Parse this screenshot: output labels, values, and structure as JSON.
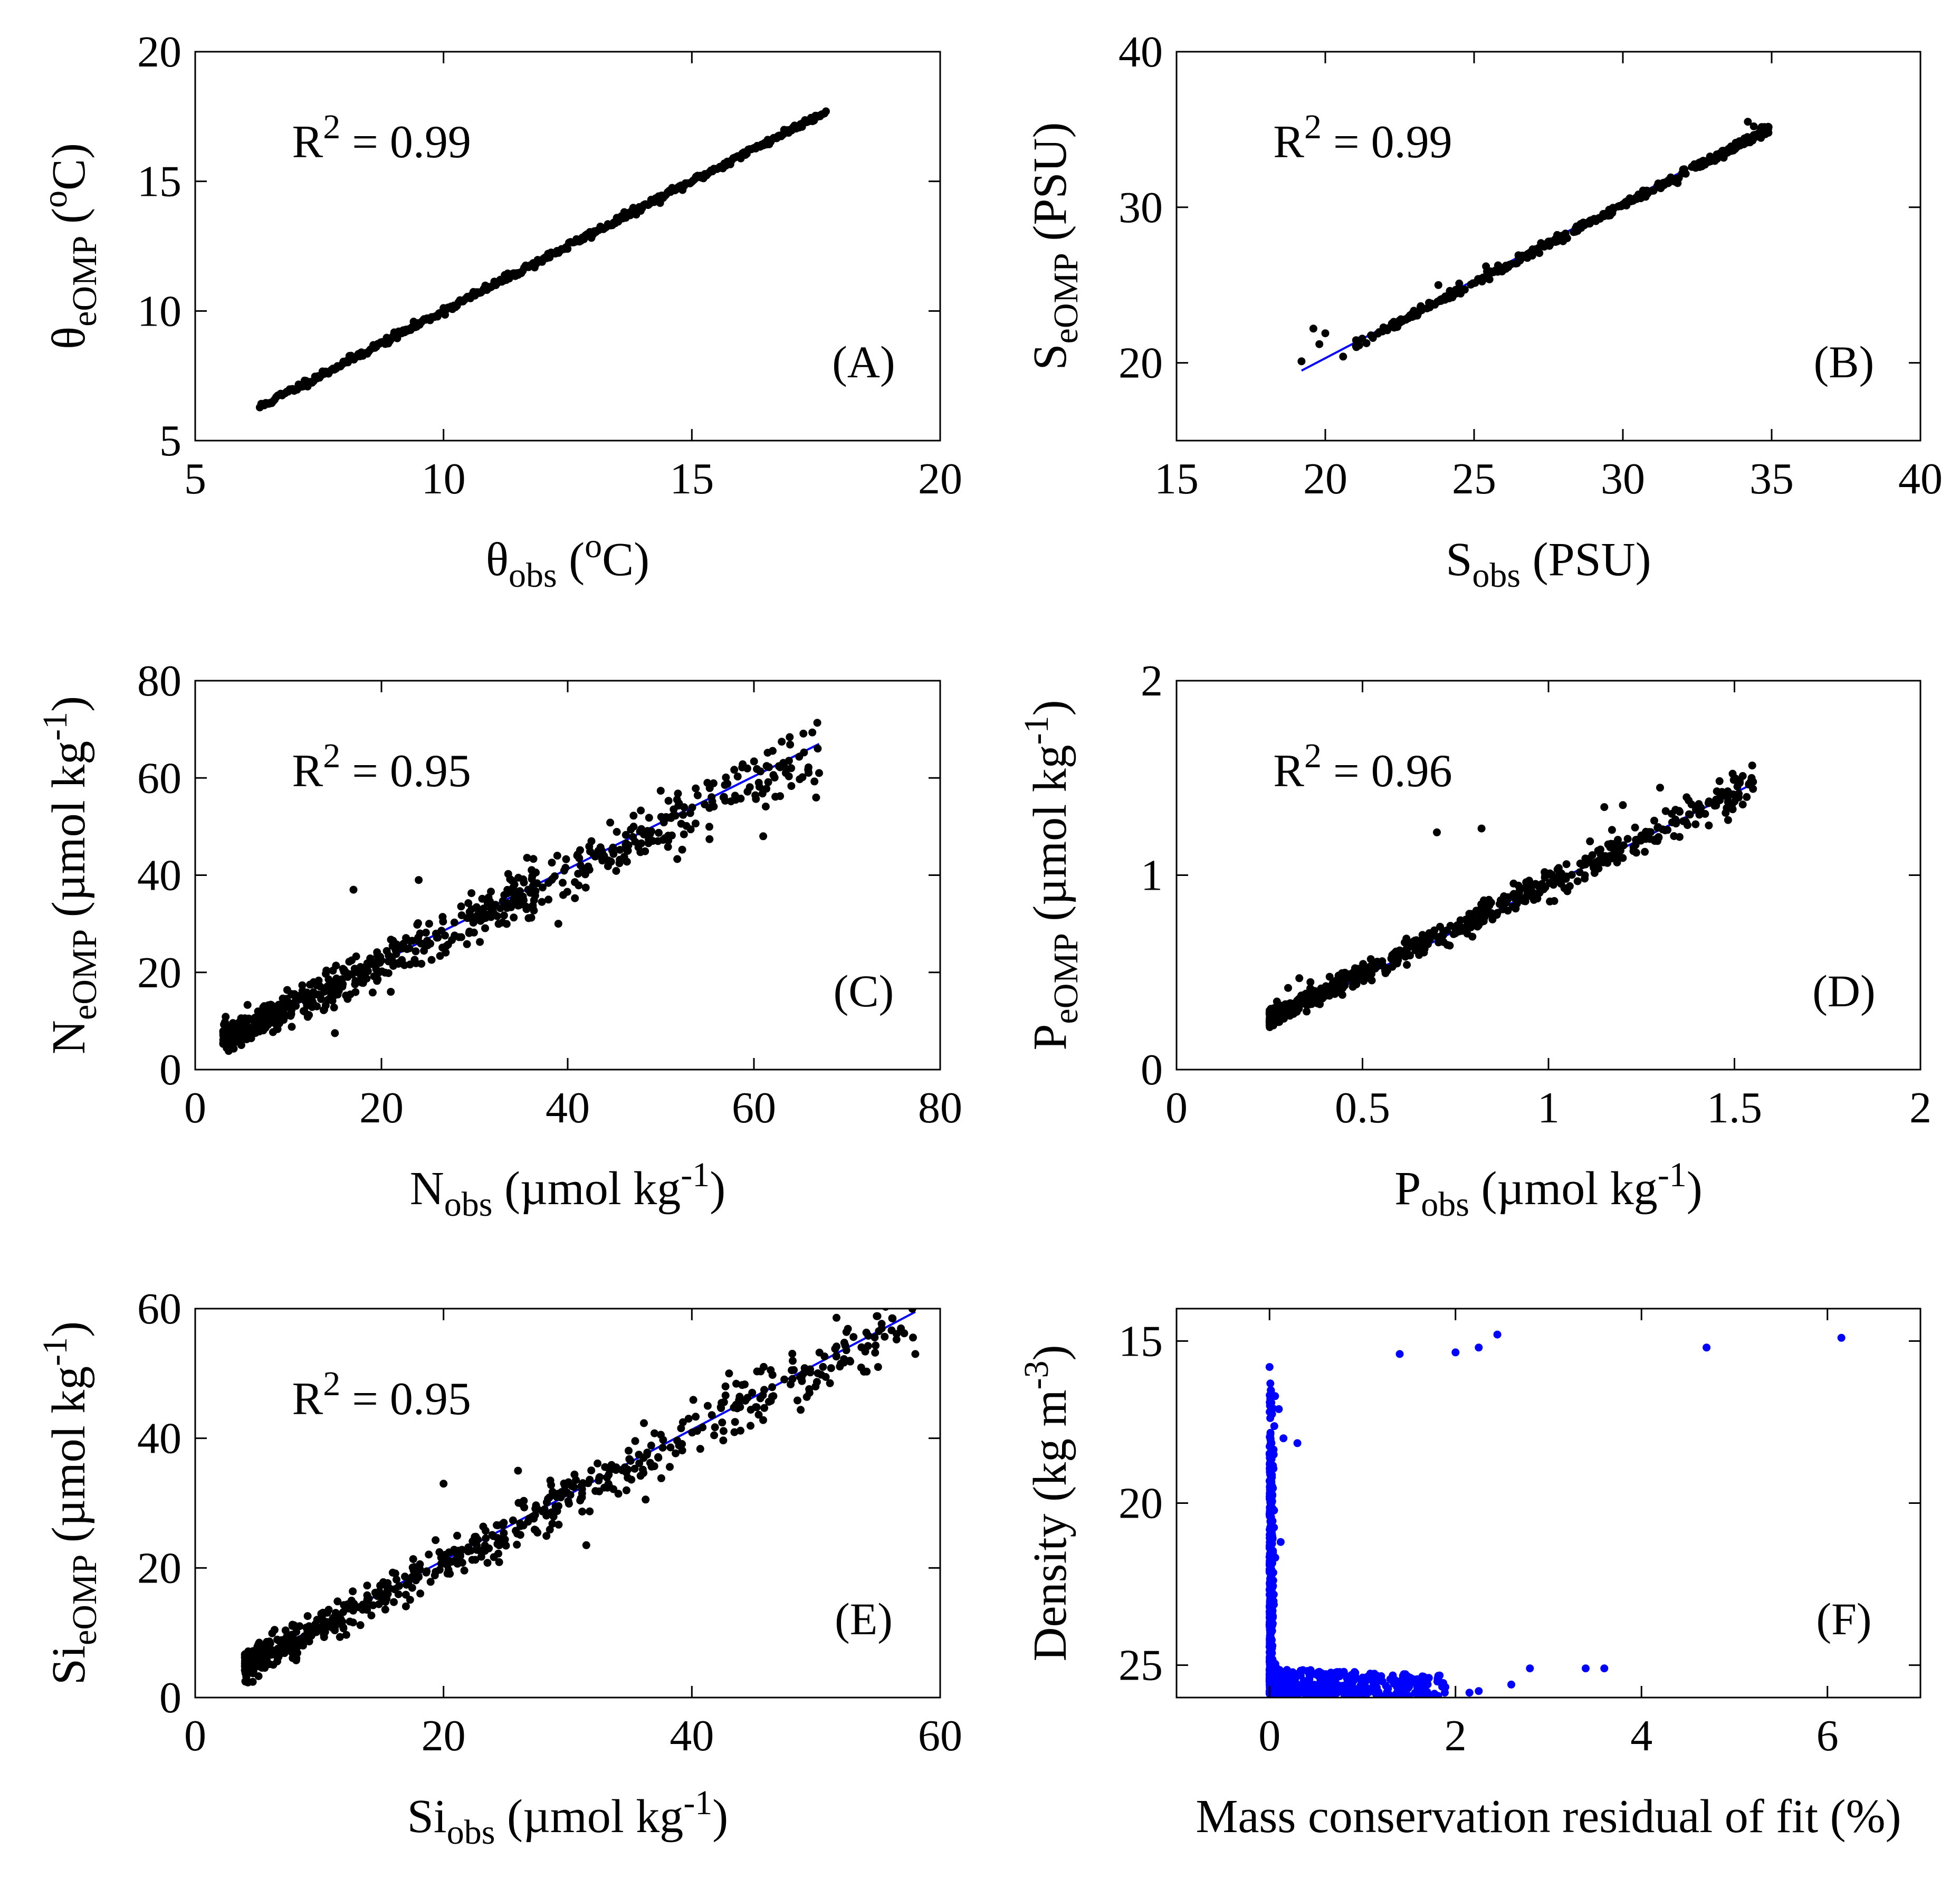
{
  "figure": {
    "marker_color": "#000000",
    "fit_line_color": "#0000ff",
    "residual_marker_color": "#0000ff",
    "background": "#ffffff"
  },
  "chart_data": [
    {
      "id": "A",
      "type": "scatter",
      "panel_label": "(A)",
      "annotation": {
        "base": "R",
        "sup": "2",
        "rest": " = 0.99"
      },
      "xlabel": {
        "base": "θ",
        "sub": "obs",
        "pre": " (",
        "sup": "o",
        "post": "C)"
      },
      "ylabel": {
        "base": "θ",
        "sub": "eOMP",
        "pre": " (",
        "sup": "o",
        "post": "C)"
      },
      "xlim": [
        5,
        20
      ],
      "ylim": [
        5,
        20
      ],
      "xticks": [
        5,
        10,
        15,
        20
      ],
      "yticks": [
        5,
        10,
        15,
        20
      ],
      "x_tick_labels": [
        "5",
        "10",
        "15",
        "20"
      ],
      "y_tick_labels": [
        "5",
        "10",
        "15",
        "20"
      ],
      "fit_line": [
        [
          6.4,
          6.4
        ],
        [
          17.7,
          17.7
        ]
      ],
      "point_model": {
        "kind": "even",
        "n": 380,
        "xmin": 6.3,
        "xmax": 17.7,
        "slope": 1.0,
        "intercept": 0.0,
        "noise": 0.07,
        "seed": 11
      },
      "extra_points": []
    },
    {
      "id": "B",
      "type": "scatter",
      "panel_label": "(B)",
      "annotation": {
        "base": "R",
        "sup": "2",
        "rest": " = 0.99"
      },
      "xlabel": {
        "base": "S",
        "sub": "obs",
        "pre": " (PSU)",
        "sup": "",
        "post": ""
      },
      "ylabel": {
        "base": "S",
        "sub": "eOMP",
        "pre": " (PSU)",
        "sup": "",
        "post": ""
      },
      "xlim": [
        15,
        40
      ],
      "ylim": [
        15,
        40
      ],
      "xticks": [
        15,
        20,
        25,
        30,
        35,
        40
      ],
      "yticks": [
        20,
        30,
        40
      ],
      "x_tick_labels": [
        "15",
        "20",
        "25",
        "30",
        "35",
        "40"
      ],
      "y_tick_labels": [
        "20",
        "30",
        "40"
      ],
      "fit_line": [
        [
          19.2,
          19.5
        ],
        [
          34.9,
          35.2
        ]
      ],
      "point_model": {
        "kind": "skew_high",
        "n": 420,
        "xmin": 21.0,
        "xmax": 34.9,
        "slope": 1.0,
        "intercept": 0.15,
        "noise": 0.12,
        "seed": 23
      },
      "extra_points": [
        [
          19.2,
          20.1
        ],
        [
          19.6,
          22.2
        ],
        [
          19.8,
          21.2
        ],
        [
          20.0,
          21.9
        ],
        [
          20.6,
          20.4
        ],
        [
          21.6,
          21.6
        ],
        [
          22.3,
          22.3
        ],
        [
          23.2,
          23.6
        ],
        [
          23.8,
          25.0
        ],
        [
          24.5,
          25.1
        ],
        [
          25.4,
          26.2
        ],
        [
          27.5,
          27.8
        ],
        [
          34.2,
          35.5
        ],
        [
          34.4,
          35.2
        ]
      ]
    },
    {
      "id": "C",
      "type": "scatter",
      "panel_label": "(C)",
      "annotation": {
        "base": "R",
        "sup": "2",
        "rest": " = 0.95"
      },
      "xlabel": {
        "base": "N",
        "sub": "obs",
        "pre": " (µmol kg",
        "sup": "-1",
        "post": ")"
      },
      "ylabel": {
        "base": "N",
        "sub": "eOMP",
        "pre": " (µmol kg",
        "sup": "-1",
        "post": ")"
      },
      "xlim": [
        0,
        80
      ],
      "ylim": [
        0,
        80
      ],
      "xticks": [
        0,
        20,
        40,
        60,
        80
      ],
      "yticks": [
        0,
        20,
        40,
        60,
        80
      ],
      "x_tick_labels": [
        "0",
        "20",
        "40",
        "60",
        "80"
      ],
      "y_tick_labels": [
        "0",
        "20",
        "40",
        "60",
        "80"
      ],
      "fit_line": [
        [
          3,
          6
        ],
        [
          67,
          67
        ]
      ],
      "point_model": {
        "kind": "skew_low",
        "n": 700,
        "xmin": 3,
        "xmax": 67,
        "slope": 0.92,
        "intercept": 3.5,
        "noise": 2.6,
        "seed": 37
      },
      "extra_points": [
        [
          17,
          37
        ],
        [
          24,
          39
        ],
        [
          15,
          7.5
        ],
        [
          21,
          16
        ],
        [
          39,
          30
        ],
        [
          61,
          48
        ],
        [
          64,
          62
        ],
        [
          67,
          61
        ],
        [
          55,
          59
        ]
      ]
    },
    {
      "id": "D",
      "type": "scatter",
      "panel_label": "(D)",
      "annotation": {
        "base": "R",
        "sup": "2",
        "rest": " = 0.96"
      },
      "xlabel": {
        "base": "P",
        "sub": "obs",
        "pre": " (µmol kg",
        "sup": "-1",
        "post": ")"
      },
      "ylabel": {
        "base": "P",
        "sub": "eOMP",
        "pre": " (µmol kg",
        "sup": "-1",
        "post": ")"
      },
      "xlim": [
        0,
        2
      ],
      "ylim": [
        0,
        2
      ],
      "xticks": [
        0,
        0.5,
        1,
        1.5,
        2
      ],
      "yticks": [
        0,
        1,
        2
      ],
      "x_tick_labels": [
        "0",
        "0.5",
        "1",
        "1.5",
        "2"
      ],
      "y_tick_labels": [
        "0",
        "1",
        "2"
      ],
      "fit_line": [
        [
          0.25,
          0.24
        ],
        [
          1.55,
          1.47
        ]
      ],
      "point_model": {
        "kind": "skew_low",
        "n": 700,
        "xmin": 0.25,
        "xmax": 1.55,
        "slope": 0.93,
        "intercept": 0.03,
        "noise": 0.035,
        "seed": 53
      },
      "extra_points": [
        [
          0.7,
          1.22
        ],
        [
          0.82,
          1.24
        ],
        [
          0.27,
          0.35
        ],
        [
          0.3,
          0.42
        ],
        [
          0.33,
          0.47
        ],
        [
          0.36,
          0.45
        ],
        [
          1.3,
          1.45
        ],
        [
          1.55,
          1.48
        ],
        [
          1.15,
          1.35
        ],
        [
          1.2,
          1.36
        ]
      ]
    },
    {
      "id": "E",
      "type": "scatter",
      "panel_label": "(E)",
      "annotation": {
        "base": "R",
        "sup": "2",
        "rest": " = 0.95"
      },
      "xlabel": {
        "base": "Si",
        "sub": "obs",
        "pre": " (µmol kg",
        "sup": "-1",
        "post": ")"
      },
      "ylabel": {
        "base": "Si",
        "sub": "eOMP",
        "pre": " (µmol kg",
        "sup": "-1",
        "post": ")"
      },
      "xlim": [
        0,
        60
      ],
      "ylim": [
        0,
        60
      ],
      "xticks": [
        0,
        20,
        40,
        60
      ],
      "yticks": [
        0,
        20,
        40,
        60
      ],
      "x_tick_labels": [
        "0",
        "20",
        "40",
        "60"
      ],
      "y_tick_labels": [
        "0",
        "20",
        "40",
        "60"
      ],
      "fit_line": [
        [
          4,
          5
        ],
        [
          58,
          59.5
        ]
      ],
      "point_model": {
        "kind": "skew_low",
        "n": 650,
        "xmin": 4,
        "xmax": 58,
        "slope": 1.0,
        "intercept": 0.8,
        "noise": 1.9,
        "seed": 71
      },
      "extra_points": [
        [
          58,
          53
        ],
        [
          52,
          51.5
        ],
        [
          49,
          50
        ],
        [
          31.5,
          23.5
        ],
        [
          20,
          33
        ],
        [
          26,
          35
        ],
        [
          43,
          50
        ],
        [
          55,
          51
        ]
      ]
    },
    {
      "id": "F",
      "type": "scatter",
      "panel_label": "(F)",
      "annotation": null,
      "xlabel": {
        "base": "Mass conservation residual of fit (%)",
        "sub": "",
        "pre": "",
        "sup": "",
        "post": ""
      },
      "ylabel": {
        "base": "Density (kg m",
        "sub": "",
        "pre": "",
        "sup": "-3",
        "post": ")"
      },
      "xlim": [
        -1,
        7
      ],
      "ylim": [
        14,
        26
      ],
      "y_reversed": true,
      "xticks": [
        0,
        2,
        4,
        6
      ],
      "yticks": [
        15,
        20,
        25
      ],
      "x_tick_labels": [
        "0",
        "2",
        "4",
        "6"
      ],
      "y_tick_labels": [
        "15",
        "20",
        "25"
      ],
      "fit_line": null,
      "point_model": {
        "kind": "residual",
        "n": 900,
        "seed": 89
      },
      "extra_points": [
        [
          0.0,
          15.8
        ],
        [
          1.4,
          15.4
        ],
        [
          2.0,
          15.35
        ],
        [
          2.25,
          15.2
        ],
        [
          2.45,
          14.8
        ],
        [
          4.7,
          15.2
        ],
        [
          6.15,
          14.9
        ],
        [
          2.8,
          25.1
        ],
        [
          3.4,
          25.1
        ],
        [
          3.6,
          25.1
        ],
        [
          2.6,
          25.6
        ],
        [
          2.25,
          25.8
        ],
        [
          2.15,
          25.85
        ],
        [
          0.1,
          17.1
        ],
        [
          0.06,
          16.7
        ],
        [
          0.15,
          18.0
        ],
        [
          0.3,
          18.15
        ],
        [
          0.12,
          21.2
        ]
      ]
    }
  ]
}
